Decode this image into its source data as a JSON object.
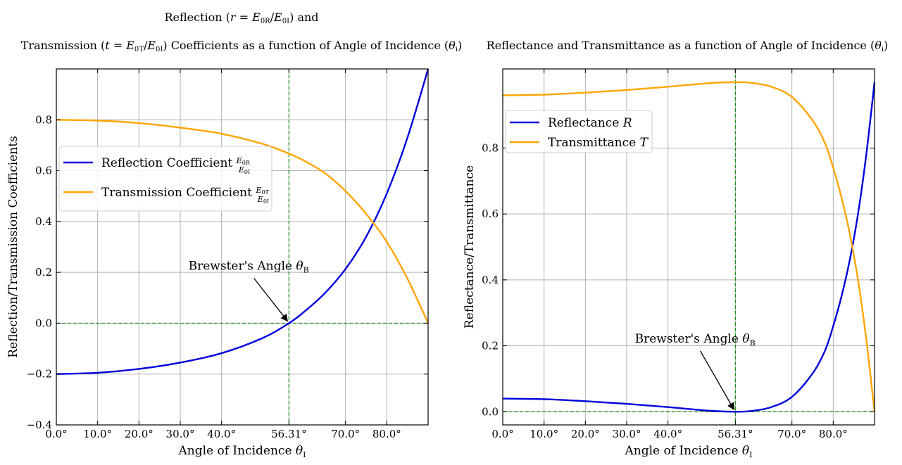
{
  "chart_data": [
    {
      "type": "line",
      "title_line1": "Reflection (r = E0R/E0I) and",
      "title_line2": "Transmission (t = E0T/E0I) Coefficients as a function of Angle of Incidence (θi)",
      "xlabel": "Angle of Incidence θI",
      "ylabel": "Reflection/Transmission Coefficients",
      "xlim": [
        0,
        90
      ],
      "ylim": [
        -0.4,
        1.0
      ],
      "xticks": [
        0,
        10,
        20,
        30,
        40,
        56.31,
        70,
        80
      ],
      "xtick_labels": [
        "0.0°",
        "10.0°",
        "20.0°",
        "30.0°",
        "40.0°",
        "56.31°",
        "70.0°",
        "80.0°"
      ],
      "yticks": [
        -0.4,
        -0.2,
        0.0,
        0.2,
        0.4,
        0.6,
        0.8
      ],
      "ytick_labels": [
        "−0.4",
        "−0.2",
        "0.0",
        "0.2",
        "0.4",
        "0.6",
        "0.8"
      ],
      "grid": true,
      "legend_position": "center-left",
      "brewster_angle": 56.31,
      "annotation": "Brewster's Angle θB",
      "annotation_text_pos": [
        33,
        0.21
      ],
      "series": [
        {
          "name": "Reflection Coefficient E0R/E0I",
          "color": "#0000dd",
          "x": [
            0,
            10,
            20,
            30,
            40,
            50,
            56.31,
            60,
            65,
            70,
            75,
            80,
            85,
            90
          ],
          "y": [
            -0.2,
            -0.195,
            -0.18,
            -0.155,
            -0.118,
            -0.058,
            0.0,
            0.045,
            0.118,
            0.213,
            0.34,
            0.51,
            0.73,
            1.0
          ]
        },
        {
          "name": "Transmission Coefficient E0T/E0I",
          "color": "#ffa500",
          "x": [
            0,
            10,
            20,
            30,
            40,
            50,
            56.31,
            60,
            65,
            70,
            75,
            80,
            85,
            90
          ],
          "y": [
            0.8,
            0.797,
            0.787,
            0.769,
            0.745,
            0.705,
            0.667,
            0.639,
            0.59,
            0.52,
            0.43,
            0.32,
            0.175,
            0.0
          ]
        }
      ]
    },
    {
      "type": "line",
      "title": "Reflectance and Transmittance as a function of Angle of Incidence (θi)",
      "xlabel": "Angle of Incidence θI",
      "ylabel": "Reflectance/Transmittance",
      "xlim": [
        0,
        90
      ],
      "ylim": [
        -0.04,
        1.04
      ],
      "xticks": [
        0,
        10,
        20,
        30,
        40,
        56.31,
        70,
        80
      ],
      "xtick_labels": [
        "0.0°",
        "10.0°",
        "20.0°",
        "30.0°",
        "40.0°",
        "56.31°",
        "70.0°",
        "80.0°"
      ],
      "yticks": [
        0.0,
        0.2,
        0.4,
        0.6,
        0.8
      ],
      "ytick_labels": [
        "0.0",
        "0.2",
        "0.4",
        "0.6",
        "0.8"
      ],
      "grid": true,
      "legend_position": "top-left",
      "brewster_angle": 56.31,
      "annotation": "Brewster's Angle θB",
      "annotation_text_pos": [
        33,
        0.21
      ],
      "series": [
        {
          "name": "Reflectance R",
          "color": "#0000dd",
          "x": [
            0,
            10,
            20,
            30,
            40,
            50,
            56.31,
            60,
            65,
            70,
            75,
            78,
            80,
            82,
            84,
            86,
            88,
            90
          ],
          "y": [
            0.04,
            0.038,
            0.032,
            0.024,
            0.014,
            0.003,
            0.0,
            0.002,
            0.014,
            0.045,
            0.116,
            0.185,
            0.26,
            0.35,
            0.46,
            0.6,
            0.78,
            1.0
          ]
        },
        {
          "name": "Transmittance T",
          "color": "#ffa500",
          "x": [
            0,
            10,
            20,
            30,
            40,
            50,
            56.31,
            60,
            65,
            70,
            75,
            78,
            80,
            82,
            84,
            86,
            88,
            90
          ],
          "y": [
            0.96,
            0.962,
            0.968,
            0.976,
            0.986,
            0.997,
            1.0,
            0.998,
            0.986,
            0.955,
            0.884,
            0.815,
            0.74,
            0.65,
            0.54,
            0.4,
            0.22,
            0.0
          ]
        }
      ]
    }
  ]
}
